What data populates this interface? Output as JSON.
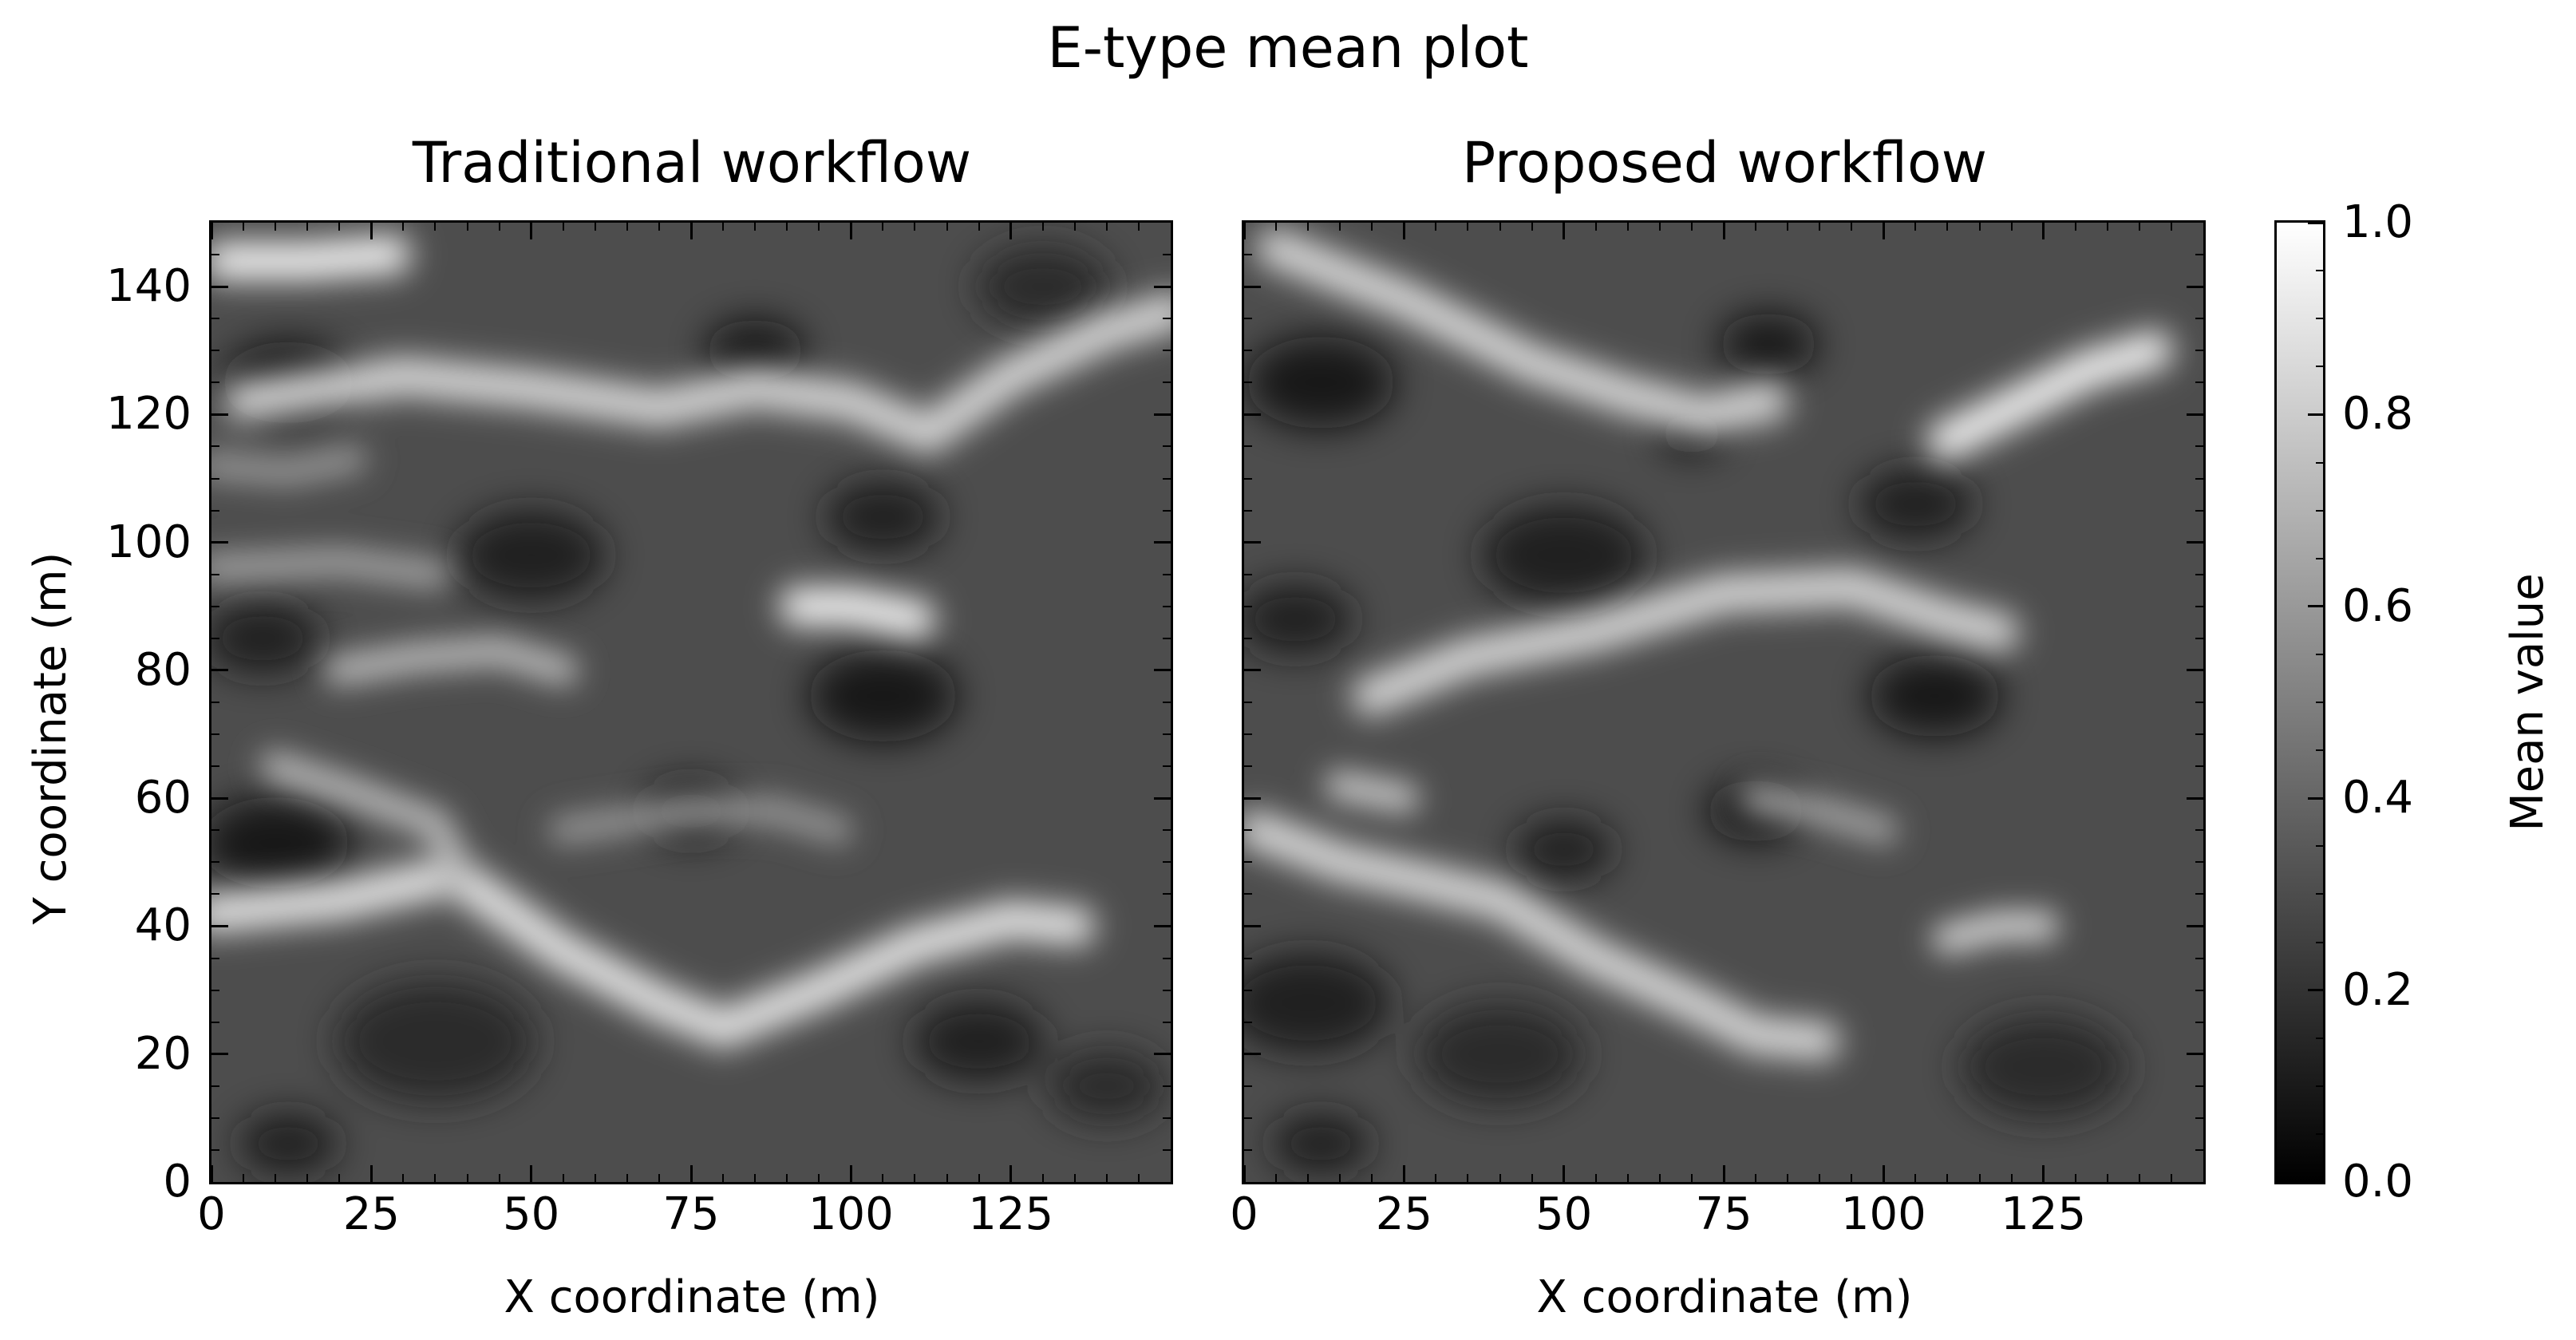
{
  "suptitle": "E-type mean plot",
  "chart_data": {
    "type": "heatmap",
    "colormap": "gray",
    "xlim": [
      0,
      150
    ],
    "ylim": [
      0,
      150
    ],
    "vmin": 0.0,
    "vmax": 1.0,
    "colorbar": {
      "label": "Mean value",
      "ticks": [
        "0.0",
        "0.2",
        "0.4",
        "0.6",
        "0.8",
        "1.0"
      ],
      "tick_values": [
        0.0,
        0.2,
        0.4,
        0.6,
        0.8,
        1.0
      ]
    },
    "panels": [
      {
        "title": "Traditional workflow",
        "xlabel": "X coordinate (m)",
        "ylabel": "Y coordinate (m)",
        "x_ticks": [
          "0",
          "25",
          "50",
          "75",
          "100",
          "125"
        ],
        "x_tick_values": [
          0,
          25,
          50,
          75,
          100,
          125
        ],
        "y_ticks": [
          "0",
          "20",
          "40",
          "60",
          "80",
          "100",
          "120",
          "140"
        ],
        "y_tick_values": [
          0,
          20,
          40,
          60,
          80,
          100,
          120,
          140
        ],
        "base_value": 0.3,
        "bright_channels": [
          {
            "points": [
              [
                0,
                42
              ],
              [
                20,
                44
              ],
              [
                38,
                48
              ],
              [
                55,
                36
              ],
              [
                70,
                28
              ],
              [
                80,
                24
              ],
              [
                95,
                30
              ],
              [
                110,
                37
              ],
              [
                125,
                41
              ],
              [
                135,
                40
              ]
            ],
            "value": 0.9,
            "width": 4
          },
          {
            "points": [
              [
                5,
                122
              ],
              [
                30,
                126
              ],
              [
                50,
                124
              ],
              [
                70,
                121
              ],
              [
                85,
                124
              ],
              [
                100,
                122
              ],
              [
                112,
                117
              ],
              [
                125,
                126
              ],
              [
                140,
                133
              ],
              [
                150,
                136
              ]
            ],
            "value": 0.85,
            "width": 4
          },
          {
            "points": [
              [
                2,
                144
              ],
              [
                15,
                144
              ],
              [
                28,
                145
              ]
            ],
            "value": 0.95,
            "width": 4
          },
          {
            "points": [
              [
                0,
                112
              ],
              [
                12,
                111
              ],
              [
                22,
                113
              ]
            ],
            "value": 0.6,
            "width": 3
          },
          {
            "points": [
              [
                0,
                96
              ],
              [
                20,
                97
              ],
              [
                35,
                95
              ]
            ],
            "value": 0.65,
            "width": 3
          },
          {
            "points": [
              [
                92,
                90
              ],
              [
                100,
                90
              ],
              [
                110,
                88
              ]
            ],
            "value": 0.95,
            "width": 4
          },
          {
            "points": [
              [
                20,
                80
              ],
              [
                32,
                82
              ],
              [
                45,
                83
              ],
              [
                55,
                80
              ]
            ],
            "value": 0.75,
            "width": 3
          },
          {
            "points": [
              [
                10,
                65
              ],
              [
                22,
                61
              ],
              [
                35,
                56
              ],
              [
                38,
                50
              ]
            ],
            "value": 0.75,
            "width": 3
          },
          {
            "points": [
              [
                55,
                55
              ],
              [
                75,
                58
              ],
              [
                88,
                58
              ],
              [
                98,
                55
              ]
            ],
            "value": 0.6,
            "width": 3
          }
        ],
        "dark_spots": [
          {
            "center": [
              12,
              125
            ],
            "value": 0.05,
            "radius": 8
          },
          {
            "center": [
              85,
              130
            ],
            "value": 0.05,
            "radius": 6
          },
          {
            "center": [
              130,
              140
            ],
            "value": 0.15,
            "radius": 8
          },
          {
            "center": [
              50,
              98
            ],
            "value": 0.08,
            "radius": 9
          },
          {
            "center": [
              105,
              104
            ],
            "value": 0.1,
            "radius": 7
          },
          {
            "center": [
              8,
              85
            ],
            "value": 0.1,
            "radius": 7
          },
          {
            "center": [
              105,
              76
            ],
            "value": 0.05,
            "radius": 9
          },
          {
            "center": [
              10,
              53
            ],
            "value": 0.05,
            "radius": 9
          },
          {
            "center": [
              75,
              58
            ],
            "value": 0.1,
            "radius": 6
          },
          {
            "center": [
              120,
              22
            ],
            "value": 0.1,
            "radius": 8
          },
          {
            "center": [
              35,
              22
            ],
            "value": 0.15,
            "radius": 12
          },
          {
            "center": [
              12,
              6
            ],
            "value": 0.1,
            "radius": 6
          },
          {
            "center": [
              140,
              15
            ],
            "value": 0.15,
            "radius": 7
          }
        ]
      },
      {
        "title": "Proposed workflow",
        "xlabel": "X coordinate (m)",
        "x_ticks": [
          "0",
          "25",
          "50",
          "75",
          "100",
          "125"
        ],
        "x_tick_values": [
          0,
          25,
          50,
          75,
          100,
          125
        ],
        "base_value": 0.3,
        "bright_channels": [
          {
            "points": [
              [
                5,
                146
              ],
              [
                25,
                138
              ],
              [
                45,
                128
              ],
              [
                60,
                123
              ],
              [
                72,
                120
              ],
              [
                82,
                122
              ]
            ],
            "value": 0.85,
            "width": 4
          },
          {
            "points": [
              [
                110,
                116
              ],
              [
                120,
                121
              ],
              [
                132,
                127
              ],
              [
                142,
                130
              ]
            ],
            "value": 0.95,
            "width": 4
          },
          {
            "points": [
              [
                20,
                76
              ],
              [
                35,
                82
              ],
              [
                55,
                86
              ],
              [
                75,
                92
              ],
              [
                95,
                93
              ],
              [
                110,
                88
              ],
              [
                118,
                86
              ]
            ],
            "value": 0.85,
            "width": 4
          },
          {
            "points": [
              [
                15,
                62
              ],
              [
                25,
                60
              ]
            ],
            "value": 0.8,
            "width": 3
          },
          {
            "points": [
              [
                2,
                55
              ],
              [
                15,
                50
              ],
              [
                28,
                47
              ],
              [
                40,
                44
              ],
              [
                55,
                35
              ],
              [
                70,
                28
              ],
              [
                80,
                23
              ],
              [
                90,
                22
              ]
            ],
            "value": 0.85,
            "width": 4
          },
          {
            "points": [
              [
                110,
                38
              ],
              [
                118,
                40
              ],
              [
                125,
                40
              ]
            ],
            "value": 0.85,
            "width": 3
          },
          {
            "points": [
              [
                80,
                60
              ],
              [
                90,
                58
              ],
              [
                100,
                55
              ]
            ],
            "value": 0.65,
            "width": 3
          }
        ],
        "dark_spots": [
          {
            "center": [
              12,
              125
            ],
            "value": 0.05,
            "radius": 9
          },
          {
            "center": [
              82,
              131
            ],
            "value": 0.05,
            "radius": 6
          },
          {
            "center": [
              70,
              117
            ],
            "value": 0.05,
            "radius": 4
          },
          {
            "center": [
              50,
              98
            ],
            "value": 0.08,
            "radius": 10
          },
          {
            "center": [
              105,
              106
            ],
            "value": 0.1,
            "radius": 7
          },
          {
            "center": [
              8,
              88
            ],
            "value": 0.1,
            "radius": 7
          },
          {
            "center": [
              108,
              76
            ],
            "value": 0.05,
            "radius": 8
          },
          {
            "center": [
              80,
              58
            ],
            "value": 0.05,
            "radius": 6
          },
          {
            "center": [
              50,
              52
            ],
            "value": 0.1,
            "radius": 6
          },
          {
            "center": [
              10,
              28
            ],
            "value": 0.08,
            "radius": 10
          },
          {
            "center": [
              40,
              20
            ],
            "value": 0.15,
            "radius": 10
          },
          {
            "center": [
              125,
              18
            ],
            "value": 0.15,
            "radius": 10
          },
          {
            "center": [
              12,
              6
            ],
            "value": 0.1,
            "radius": 6
          }
        ]
      }
    ]
  }
}
